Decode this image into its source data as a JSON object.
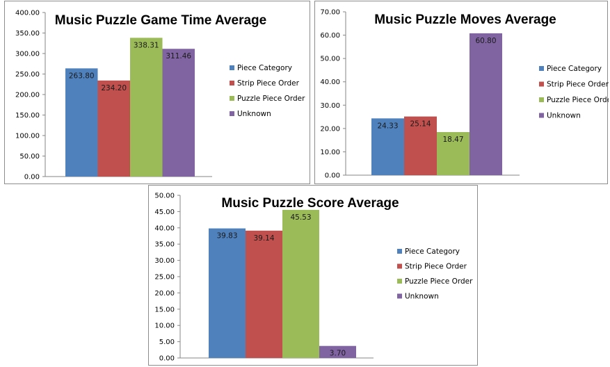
{
  "colors": {
    "piece_category": "#4f81bd",
    "strip_piece_order": "#c0504d",
    "puzzle_piece_order": "#9bbb59",
    "unknown": "#8064a2"
  },
  "chart_data": [
    {
      "type": "bar",
      "title": "Music Puzzle Game Time Average",
      "categories": [
        ""
      ],
      "series": [
        {
          "name": "Piece Category",
          "values": [
            263.8
          ],
          "label": "263.80"
        },
        {
          "name": "Strip Piece Order",
          "values": [
            234.2
          ],
          "label": "234.20"
        },
        {
          "name": "Puzzle Piece Order",
          "values": [
            338.31
          ],
          "label": "338.31"
        },
        {
          "name": "Unknown",
          "values": [
            311.46
          ],
          "label": "311.46"
        }
      ],
      "ylim": [
        0,
        400
      ],
      "yticks": [
        "0.00",
        "50.00",
        "100.00",
        "150.00",
        "200.00",
        "250.00",
        "300.00",
        "350.00",
        "400.00"
      ],
      "grid": false,
      "legend": "right"
    },
    {
      "type": "bar",
      "title": "Music Puzzle Moves Average",
      "categories": [
        ""
      ],
      "series": [
        {
          "name": "Piece Category",
          "values": [
            24.33
          ],
          "label": "24.33"
        },
        {
          "name": "Strip Piece Order",
          "values": [
            25.14
          ],
          "label": "25.14"
        },
        {
          "name": "Puzzle Piece Order",
          "values": [
            18.47
          ],
          "label": "18.47"
        },
        {
          "name": "Unknown",
          "values": [
            60.8
          ],
          "label": "60.80"
        }
      ],
      "ylim": [
        0,
        70
      ],
      "yticks": [
        "0.00",
        "10.00",
        "20.00",
        "30.00",
        "40.00",
        "50.00",
        "60.00",
        "70.00"
      ],
      "grid": false,
      "legend": "right"
    },
    {
      "type": "bar",
      "title": "Music Puzzle Score Average",
      "categories": [
        ""
      ],
      "series": [
        {
          "name": "Piece Category",
          "values": [
            39.83
          ],
          "label": "39.83"
        },
        {
          "name": "Strip Piece Order",
          "values": [
            39.14
          ],
          "label": "39.14"
        },
        {
          "name": "Puzzle Piece Order",
          "values": [
            45.53
          ],
          "label": "45.53"
        },
        {
          "name": "Unknown",
          "values": [
            3.7
          ],
          "label": "3.70"
        }
      ],
      "ylim": [
        0,
        50
      ],
      "yticks": [
        "0.00",
        "5.00",
        "10.00",
        "15.00",
        "20.00",
        "25.00",
        "30.00",
        "35.00",
        "40.00",
        "45.00",
        "50.00"
      ],
      "grid": false,
      "legend": "right"
    }
  ]
}
